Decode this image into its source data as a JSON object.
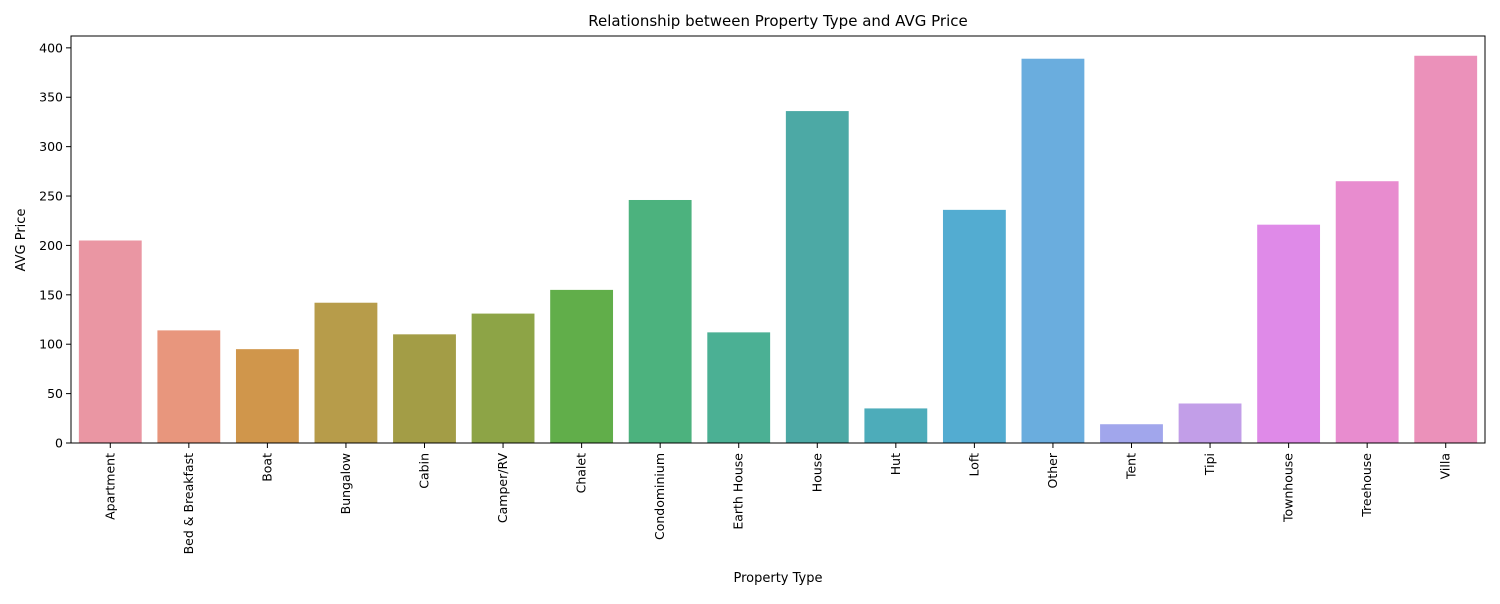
{
  "chart_data": {
    "type": "bar",
    "title": "Relationship between Property Type and AVG Price",
    "xlabel": "Property Type",
    "ylabel": "AVG Price",
    "ylim": [
      0,
      412
    ],
    "yticks": [
      0,
      50,
      100,
      150,
      200,
      250,
      300,
      350,
      400
    ],
    "grid": false,
    "legend": "none",
    "categories": [
      "Apartment",
      "Bed & Breakfast",
      "Boat",
      "Bungalow",
      "Cabin",
      "Camper/RV",
      "Chalet",
      "Condominium",
      "Earth House",
      "House",
      "Hut",
      "Loft",
      "Other",
      "Tent",
      "Tipi",
      "Townhouse",
      "Treehouse",
      "Villa"
    ],
    "values": [
      205,
      114,
      95,
      142,
      110,
      131,
      155,
      246,
      112,
      336,
      35,
      236,
      389,
      19,
      40,
      221,
      265,
      392
    ],
    "colors": [
      "#ea96a3",
      "#e8967d",
      "#d0964b",
      "#b79c4a",
      "#a39d46",
      "#8da446",
      "#61ae4a",
      "#4cb27e",
      "#4bb094",
      "#4ca9a5",
      "#4dacba",
      "#53acd1",
      "#6aadde",
      "#a1a6ec",
      "#c29ee8",
      "#df8ae8",
      "#e88ccf",
      "#eb91ba"
    ]
  }
}
